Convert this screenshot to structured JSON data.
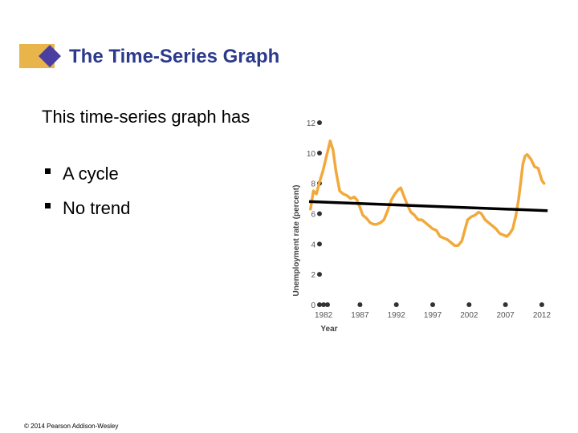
{
  "slide": {
    "title": "The Time-Series Graph",
    "intro": "This time-series graph has",
    "bullets": [
      "A cycle",
      "No trend"
    ],
    "footer": "© 2014 Pearson Addison-Wesley"
  },
  "colors": {
    "title": "#2b3a8c",
    "series": "#f2a93b",
    "trend": "#000000",
    "tick_dot": "#333333",
    "diamond": "#4a3fa0",
    "bar_left": "#e8b54a"
  },
  "chart_data": {
    "type": "line",
    "xlabel": "Year",
    "ylabel": "Unemployment rate (percent)",
    "xlim": [
      1980,
      2013
    ],
    "ylim": [
      0,
      12
    ],
    "xticks": [
      1982,
      1987,
      1992,
      1997,
      2002,
      2007,
      2012
    ],
    "yticks": [
      0,
      2,
      4,
      6,
      8,
      10,
      12
    ],
    "series": [
      {
        "x": [
          1980.2,
          1980.6,
          1981,
          1981.5,
          1981.9,
          1982.3,
          1982.7,
          1982.9,
          1983.3,
          1983.7,
          1984.2,
          1984.7,
          1985.2,
          1985.7,
          1986.2,
          1986.6,
          1987,
          1987.4,
          1987.9,
          1988.4,
          1988.9,
          1989.3,
          1989.8,
          1990.3,
          1990.8,
          1991.3,
          1991.8,
          1992.3,
          1992.6,
          1993,
          1993.5,
          1994,
          1994.5,
          1995,
          1995.5,
          1996,
          1996.5,
          1997,
          1997.5,
          1998,
          1998.5,
          1999,
          1999.5,
          2000,
          2000.5,
          2001,
          2001.4,
          2001.8,
          2002.3,
          2002.8,
          2003.3,
          2003.7,
          2004.2,
          2004.7,
          2005.2,
          2005.7,
          2006.2,
          2006.7,
          2007.2,
          2007.6,
          2008,
          2008.4,
          2008.8,
          2009.1,
          2009.4,
          2009.7,
          2010,
          2010.5,
          2011,
          2011.5,
          2012,
          2012.3
        ],
        "y": [
          6.3,
          7.5,
          7.3,
          8.2,
          8.8,
          9.6,
          10.4,
          10.8,
          10.2,
          8.8,
          7.5,
          7.3,
          7.2,
          7.0,
          7.1,
          6.9,
          6.4,
          5.9,
          5.7,
          5.4,
          5.3,
          5.3,
          5.4,
          5.6,
          6.2,
          6.9,
          7.3,
          7.6,
          7.7,
          7.2,
          6.6,
          6.1,
          5.9,
          5.6,
          5.6,
          5.4,
          5.2,
          5.0,
          4.9,
          4.5,
          4.4,
          4.3,
          4.1,
          3.9,
          3.9,
          4.2,
          4.9,
          5.6,
          5.8,
          5.9,
          6.1,
          6.0,
          5.6,
          5.4,
          5.2,
          5.0,
          4.7,
          4.6,
          4.5,
          4.7,
          5.0,
          5.8,
          6.9,
          8.1,
          9.3,
          9.8,
          9.9,
          9.6,
          9.1,
          9.0,
          8.2,
          8.0
        ]
      }
    ],
    "trend_line": {
      "x": [
        1980,
        2012.8
      ],
      "y": [
        6.8,
        6.2
      ]
    }
  }
}
